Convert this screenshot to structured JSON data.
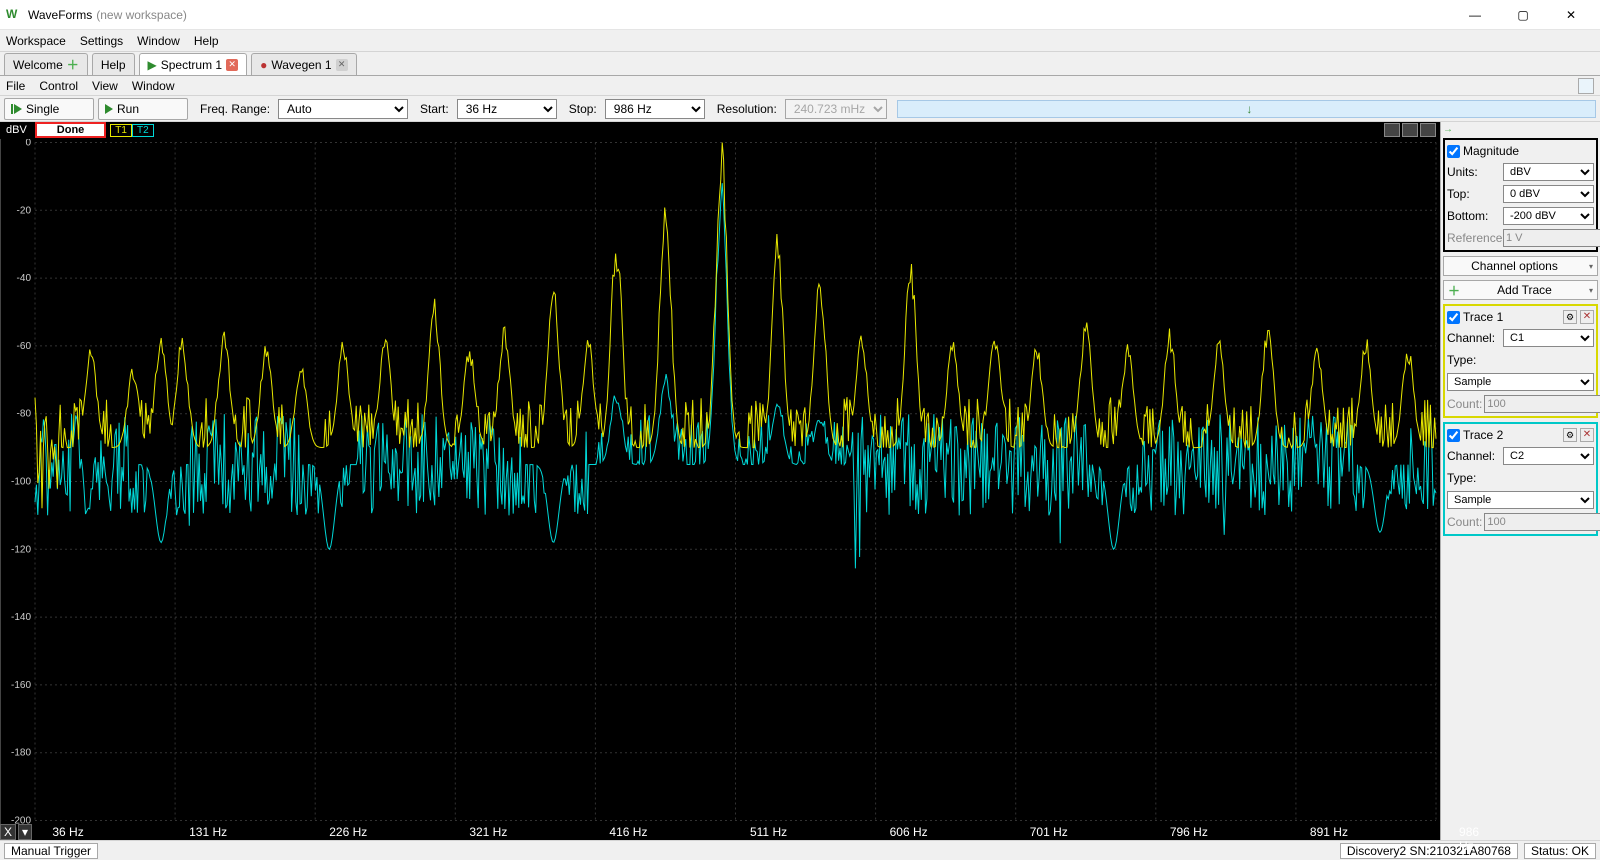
{
  "app": {
    "name": "WaveForms",
    "subtitle": "(new workspace)"
  },
  "menus": {
    "main": [
      "Workspace",
      "Settings",
      "Window",
      "Help"
    ],
    "sub": [
      "File",
      "Control",
      "View",
      "Window"
    ]
  },
  "tabs": {
    "welcome": "Welcome",
    "help": "Help",
    "spectrum": "Spectrum 1",
    "wavegen": "Wavegen 1"
  },
  "toolbar": {
    "single": "Single",
    "run": "Run",
    "freq_range_label": "Freq. Range:",
    "freq_range": "Auto",
    "start_label": "Start:",
    "start": "36 Hz",
    "stop_label": "Stop:",
    "stop": "986 Hz",
    "resolution_label": "Resolution:",
    "resolution": "240.723 mHz"
  },
  "plot": {
    "y_unit": "dBV",
    "status": "Done",
    "t1": "T1",
    "t2": "T2",
    "background": "#000000",
    "grid_color": "#333333",
    "trace1_color": "#e8e800",
    "trace2_color": "#00d8d8",
    "ylim": [
      -200,
      0
    ],
    "ytick_step": 20,
    "yticks": [
      0,
      -20,
      -40,
      -60,
      -80,
      -100,
      -120,
      -140,
      -160,
      -180,
      -200
    ],
    "xlim": [
      36,
      986
    ],
    "xtick_step": 95,
    "xticks": [
      "36 Hz",
      "131 Hz",
      "226 Hz",
      "321 Hz",
      "416 Hz",
      "511 Hz",
      "606 Hz",
      "701 Hz",
      "796 Hz",
      "891 Hz",
      "986 Hz"
    ],
    "x_footer_button": "X",
    "trace1_floor": -90,
    "trace1_noise": 15,
    "trace2_floor": -95,
    "trace2_noise": 15,
    "trace1_peaks": [
      {
        "x": 0.04,
        "db": -62
      },
      {
        "x": 0.07,
        "db": -68
      },
      {
        "x": 0.09,
        "db": -58
      },
      {
        "x": 0.105,
        "db": -60
      },
      {
        "x": 0.135,
        "db": -58
      },
      {
        "x": 0.165,
        "db": -62
      },
      {
        "x": 0.19,
        "db": -68
      },
      {
        "x": 0.22,
        "db": -60
      },
      {
        "x": 0.25,
        "db": -60
      },
      {
        "x": 0.285,
        "db": -50
      },
      {
        "x": 0.31,
        "db": -62
      },
      {
        "x": 0.335,
        "db": -56
      },
      {
        "x": 0.37,
        "db": -45
      },
      {
        "x": 0.395,
        "db": -60
      },
      {
        "x": 0.415,
        "db": -32
      },
      {
        "x": 0.45,
        "db": -20
      },
      {
        "x": 0.49,
        "db": -3
      },
      {
        "x": 0.53,
        "db": -32
      },
      {
        "x": 0.56,
        "db": -40
      },
      {
        "x": 0.59,
        "db": -58
      },
      {
        "x": 0.625,
        "db": -38
      },
      {
        "x": 0.655,
        "db": -60
      },
      {
        "x": 0.685,
        "db": -58
      },
      {
        "x": 0.715,
        "db": -62
      },
      {
        "x": 0.75,
        "db": -55
      },
      {
        "x": 0.78,
        "db": -62
      },
      {
        "x": 0.81,
        "db": -58
      },
      {
        "x": 0.845,
        "db": -60
      },
      {
        "x": 0.88,
        "db": -56
      },
      {
        "x": 0.915,
        "db": -62
      },
      {
        "x": 0.95,
        "db": -60
      },
      {
        "x": 0.98,
        "db": -62
      }
    ],
    "trace2_peaks": [
      {
        "x": 0.09,
        "db": -118
      },
      {
        "x": 0.21,
        "db": -120
      },
      {
        "x": 0.37,
        "db": -118
      },
      {
        "x": 0.415,
        "db": -75
      },
      {
        "x": 0.45,
        "db": -70
      },
      {
        "x": 0.49,
        "db": -18
      },
      {
        "x": 0.53,
        "db": -78
      },
      {
        "x": 0.56,
        "db": -82
      },
      {
        "x": 0.77,
        "db": -120
      },
      {
        "x": 0.96,
        "db": -115
      }
    ]
  },
  "right": {
    "magnitude": {
      "title": "Magnitude",
      "checked": true,
      "units_label": "Units:",
      "units": "dBV",
      "top_label": "Top:",
      "top": "0 dBV",
      "bottom_label": "Bottom:",
      "bottom": "-200 dBV",
      "reference_label": "Reference:",
      "reference": "1 V"
    },
    "channel_options": "Channel options",
    "add_trace": "Add Trace",
    "trace1": {
      "title": "Trace 1",
      "checked": true,
      "channel_label": "Channel:",
      "channel": "C1",
      "type_label": "Type:",
      "type": "Sample",
      "count_label": "Count:",
      "count": "100"
    },
    "trace2": {
      "title": "Trace 2",
      "checked": true,
      "channel_label": "Channel:",
      "channel": "C2",
      "type_label": "Type:",
      "type": "Sample",
      "count_label": "Count:",
      "count": "100"
    }
  },
  "status": {
    "trigger": "Manual Trigger",
    "device": "Discovery2 SN:210321A80768",
    "ok": "Status: OK"
  }
}
